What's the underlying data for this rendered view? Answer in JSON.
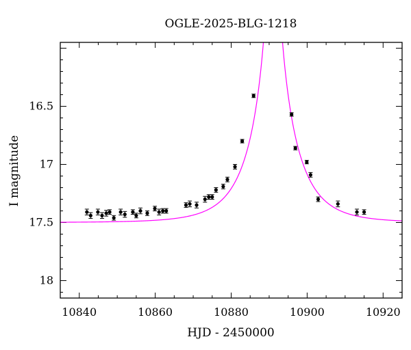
{
  "chart_data": {
    "type": "scatter",
    "title": "OGLE-2025-BLG-1218",
    "xlabel": "HJD - 2450000",
    "ylabel": "I magnitude",
    "xlim": [
      10835,
      10925
    ],
    "ylim": [
      18.15,
      15.95
    ],
    "y_inverted": true,
    "x_ticks": [
      10840,
      10860,
      10880,
      10900,
      10920
    ],
    "x_tick_labels": [
      "10840",
      "10860",
      "10880",
      "10900",
      "10920"
    ],
    "y_ticks": [
      16.5,
      17,
      17.5,
      18
    ],
    "y_tick_labels": [
      "16.5",
      "17",
      "17.5",
      "18"
    ],
    "grid": false,
    "colors": {
      "data": "#000000",
      "model": "#ff00ff"
    },
    "series": [
      {
        "kind": "points_with_errorbars",
        "x": [
          10842.0,
          10843.0,
          10844.9,
          10846.0,
          10847.1,
          10848.0,
          10849.1,
          10850.9,
          10852.0,
          10854.1,
          10855.0,
          10856.1,
          10857.9,
          10859.9,
          10861.0,
          10862.0,
          10862.9,
          10868.1,
          10869.1,
          10870.9,
          10873.1,
          10874.1,
          10875.0,
          10876.0,
          10877.9,
          10879.0,
          10881.0,
          10882.9,
          10885.9,
          10895.9,
          10896.9,
          10899.9,
          10900.9,
          10902.9,
          10908.1,
          10913.1,
          10915.0
        ],
        "y": [
          17.41,
          17.44,
          17.41,
          17.44,
          17.42,
          17.41,
          17.46,
          17.41,
          17.43,
          17.41,
          17.44,
          17.4,
          17.42,
          17.38,
          17.41,
          17.4,
          17.4,
          17.35,
          17.34,
          17.35,
          17.3,
          17.28,
          17.28,
          17.22,
          17.19,
          17.13,
          17.02,
          16.8,
          16.41,
          16.57,
          16.86,
          16.98,
          17.09,
          17.3,
          17.34,
          17.41,
          17.41
        ],
        "yerr": [
          0.025,
          0.025,
          0.025,
          0.025,
          0.025,
          0.02,
          0.02,
          0.025,
          0.025,
          0.02,
          0.02,
          0.025,
          0.02,
          0.02,
          0.025,
          0.02,
          0.02,
          0.02,
          0.025,
          0.025,
          0.025,
          0.02,
          0.02,
          0.02,
          0.02,
          0.02,
          0.02,
          0.015,
          0.015,
          0.015,
          0.015,
          0.015,
          0.02,
          0.02,
          0.025,
          0.025,
          0.02
        ]
      },
      {
        "kind": "model_curve",
        "t0": 10891.0,
        "tE": 10.5,
        "u0": 0.05,
        "baseline_mag": 17.5
      }
    ]
  }
}
